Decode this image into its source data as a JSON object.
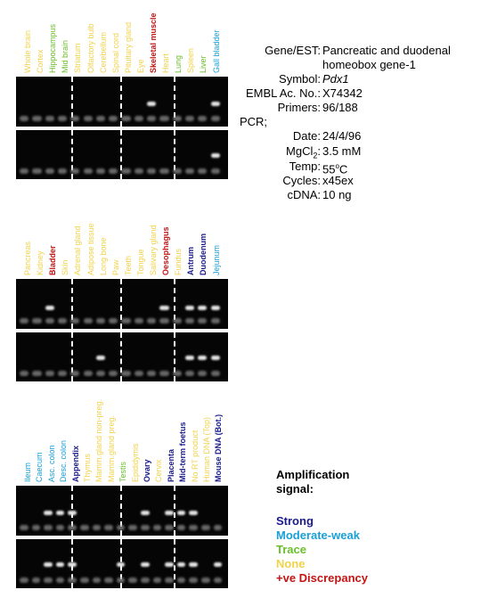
{
  "colors": {
    "strong": "#1a1a8c",
    "moderate": "#1aa0d8",
    "trace": "#6ac02a",
    "none": "#f2d24a",
    "discrepancy": "#c41414"
  },
  "panel1": {
    "tissues": [
      {
        "name": "Whole brain",
        "level": "none"
      },
      {
        "name": "Cortex",
        "level": "none"
      },
      {
        "name": "Hippocampus",
        "level": "trace"
      },
      {
        "name": "Mid brain",
        "level": "trace"
      },
      {
        "name": "Striatum",
        "level": "none"
      },
      {
        "name": "Olfactory bulb",
        "level": "none"
      },
      {
        "name": "Cerebellum",
        "level": "none"
      },
      {
        "name": "Spinal cord",
        "level": "none"
      },
      {
        "name": "Pituitary gland",
        "level": "none"
      },
      {
        "name": "Eye",
        "level": "none"
      },
      {
        "name": "Skeletal muscle",
        "level": "discrepancy"
      },
      {
        "name": "Heart",
        "level": "none"
      },
      {
        "name": "Lung",
        "level": "trace"
      },
      {
        "name": "Spleen",
        "level": "none"
      },
      {
        "name": "Liver",
        "level": "trace"
      },
      {
        "name": "Gall bladder",
        "level": "moderate"
      }
    ]
  },
  "panel2": {
    "tissues": [
      {
        "name": "Pancreas",
        "level": "none"
      },
      {
        "name": "Kidney",
        "level": "none"
      },
      {
        "name": "Bladder",
        "level": "discrepancy"
      },
      {
        "name": "Skin",
        "level": "none"
      },
      {
        "name": "Adrenal gland",
        "level": "none"
      },
      {
        "name": "Adipose tissue",
        "level": "none"
      },
      {
        "name": "Long bone",
        "level": "none"
      },
      {
        "name": "Paw",
        "level": "none"
      },
      {
        "name": "Teeth",
        "level": "none"
      },
      {
        "name": "Tongue",
        "level": "none"
      },
      {
        "name": "Salivary gland",
        "level": "none"
      },
      {
        "name": "Oesophagus",
        "level": "discrepancy"
      },
      {
        "name": "Fundus",
        "level": "none"
      },
      {
        "name": "Antrum",
        "level": "strong"
      },
      {
        "name": "Duodenum",
        "level": "strong"
      },
      {
        "name": "Jejunum",
        "level": "moderate"
      }
    ]
  },
  "panel3": {
    "tissues": [
      {
        "name": "Ileum",
        "level": "moderate"
      },
      {
        "name": "Caecum",
        "level": "moderate"
      },
      {
        "name": "Asc. colon",
        "level": "moderate"
      },
      {
        "name": "Desc. colon",
        "level": "moderate"
      },
      {
        "name": "Appendix",
        "level": "strong"
      },
      {
        "name": "Thymus",
        "level": "none"
      },
      {
        "name": "Mamm.gland non-preg.",
        "level": "none"
      },
      {
        "name": "Mamm.gland preg.",
        "level": "none"
      },
      {
        "name": "Testis",
        "level": "trace"
      },
      {
        "name": "Epididymis",
        "level": "none"
      },
      {
        "name": "Ovary",
        "level": "strong"
      },
      {
        "name": "Cervix",
        "level": "none"
      },
      {
        "name": "Placenta",
        "level": "strong"
      },
      {
        "name": "Mid-term foetus",
        "level": "strong"
      },
      {
        "name": "No RT product",
        "level": "none"
      },
      {
        "name": "Human DNA (Top)",
        "level": "none"
      },
      {
        "name": "Mouse DNA (Bot.)",
        "level": "strong"
      }
    ]
  },
  "info": {
    "gene_key": "Gene/EST:",
    "gene_value_1": "Pancreatic and duodenal",
    "gene_value_2": "homeobox gene-1",
    "symbol_key": "Symbol:",
    "symbol_value": "Pdx1",
    "embl_key": "EMBL Ac. No.:",
    "embl_value": "X74342",
    "primers_key": "Primers:",
    "primers_value": "96/188",
    "pcr_key": "PCR;",
    "date_key": "Date:",
    "date_value": "24/4/96",
    "mgcl_key": "MgCl",
    "mgcl_sub": "2",
    "mgcl_colon": ":",
    "mgcl_value": "3.5 mM",
    "temp_key": "Temp:",
    "temp_value_num": "55",
    "temp_value_sup": "o",
    "temp_value_unit": "C",
    "cycles_key": "Cycles:",
    "cycles_value": "x45ex",
    "cdna_key": "cDNA:",
    "cdna_value": "10 ng"
  },
  "legend": {
    "title_1": "Amplification",
    "title_2": "signal:",
    "strong": "Strong",
    "moderate": "Moderate-weak",
    "trace": "Trace",
    "none": "None",
    "discrepancy": "+ve Discrepancy"
  },
  "gel_bands": {
    "panel1_top": [
      10,
      15
    ],
    "panel1_bottom": [
      15
    ],
    "panel2_top": [
      2,
      11,
      13,
      14,
      15
    ],
    "panel2_bottom": [
      6,
      13,
      14,
      15
    ],
    "panel3_top": [
      2,
      3,
      4,
      10,
      12,
      13,
      14
    ],
    "panel3_bottom": [
      2,
      3,
      4,
      8,
      10,
      12,
      13,
      14,
      16
    ]
  }
}
